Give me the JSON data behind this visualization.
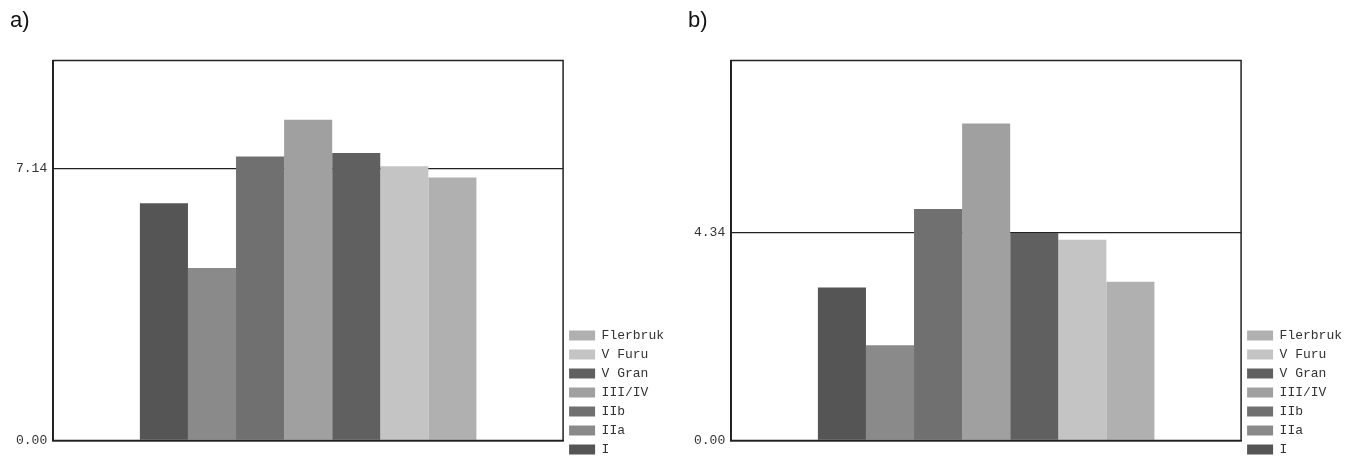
{
  "chart_data": [
    {
      "type": "bar",
      "title": "a)",
      "categories": [
        null
      ],
      "series": [
        {
          "name": "I",
          "color": "#555555",
          "values": [
            6.22
          ]
        },
        {
          "name": "IIa",
          "color": "#8a8a8a",
          "values": [
            4.52
          ]
        },
        {
          "name": "IIb",
          "color": "#707070",
          "values": [
            7.45
          ]
        },
        {
          "name": "III/IV",
          "color": "#a0a0a0",
          "values": [
            8.41
          ]
        },
        {
          "name": "V Gran",
          "color": "#606060",
          "values": [
            7.54
          ]
        },
        {
          "name": "V Furu",
          "color": "#c4c4c4",
          "values": [
            7.19
          ]
        },
        {
          "name": "Flerbruk",
          "color": "#b0b0b0",
          "values": [
            6.9
          ]
        }
      ],
      "ylim": [
        0,
        9.97
      ],
      "yticks": [
        {
          "value": 0,
          "label": "0.00"
        },
        7.14
      ],
      "grid": "y",
      "legend": "bottom right"
    },
    {
      "type": "bar",
      "title": "b)",
      "categories": [
        null
      ],
      "series": [
        {
          "name": "I",
          "color": "#555555",
          "values": [
            3.2
          ]
        },
        {
          "name": "IIa",
          "color": "#8a8a8a",
          "values": [
            1.99
          ]
        },
        {
          "name": "IIb",
          "color": "#707070",
          "values": [
            4.84
          ]
        },
        {
          "name": "III/IV",
          "color": "#a0a0a0",
          "values": [
            6.63
          ]
        },
        {
          "name": "V Gran",
          "color": "#606060",
          "values": [
            4.34
          ]
        },
        {
          "name": "V Furu",
          "color": "#c4c4c4",
          "values": [
            4.2
          ]
        },
        {
          "name": "Flerbruk",
          "color": "#b0b0b0",
          "values": [
            3.32
          ]
        }
      ],
      "ylim": [
        0,
        7.95
      ],
      "yticks": [
        {
          "value": 0,
          "label": "0.00"
        },
        4.34
      ],
      "grid": "y",
      "legend": "bottom right"
    }
  ]
}
